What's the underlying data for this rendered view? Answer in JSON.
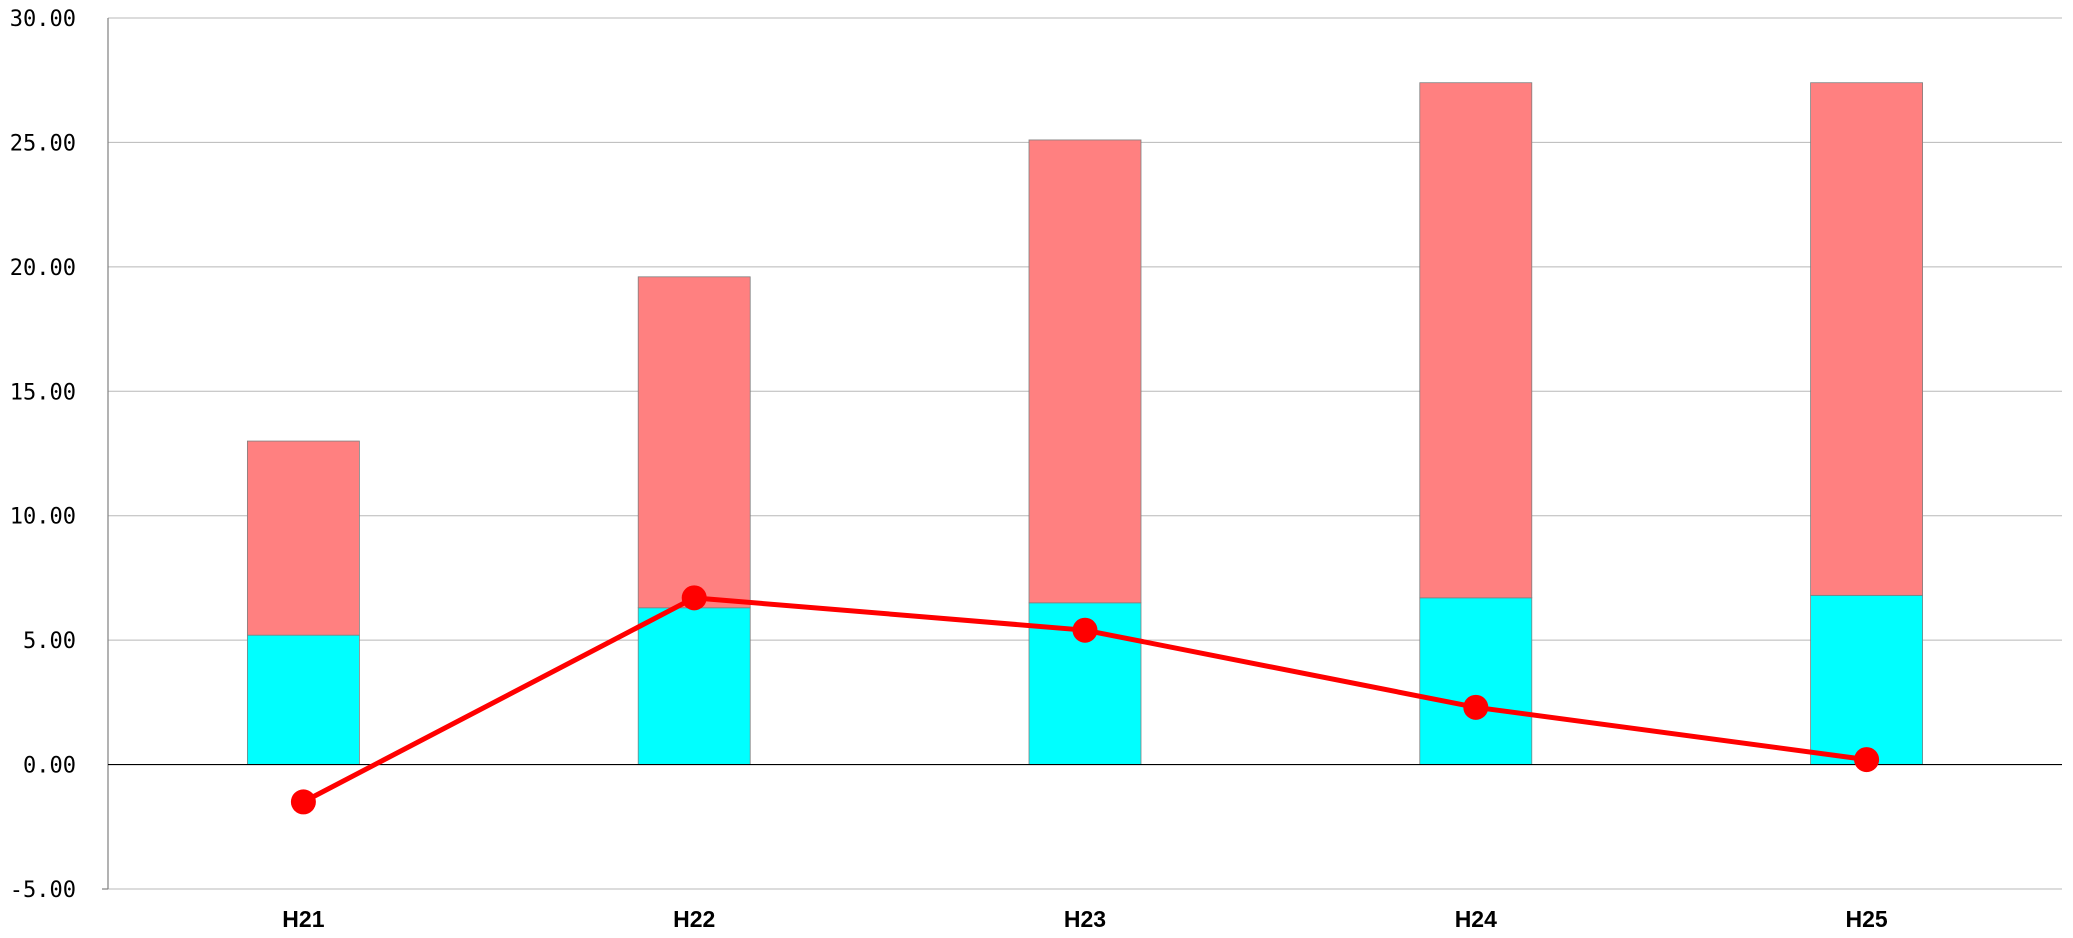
{
  "chart_data": {
    "type": "bar",
    "categories": [
      "H21",
      "H22",
      "H23",
      "H24",
      "H25"
    ],
    "stacked": true,
    "series": [
      {
        "kind": "bar",
        "color": "#00ffff",
        "values": [
          5.2,
          6.3,
          6.5,
          6.7,
          6.8
        ]
      },
      {
        "kind": "bar",
        "color": "#ff8080",
        "values": [
          7.8,
          13.3,
          18.6,
          20.7,
          20.6
        ]
      },
      {
        "kind": "line",
        "color": "#ff0000",
        "values": [
          -1.5,
          6.7,
          5.4,
          2.3,
          0.2
        ]
      }
    ],
    "yticks": [
      "-5.00",
      "0.00",
      "5.00",
      "10.00",
      "15.00",
      "20.00",
      "25.00",
      "30.00"
    ],
    "ylim": [
      -5,
      30
    ],
    "grid": true,
    "title": "",
    "xlabel": "",
    "ylabel": ""
  }
}
